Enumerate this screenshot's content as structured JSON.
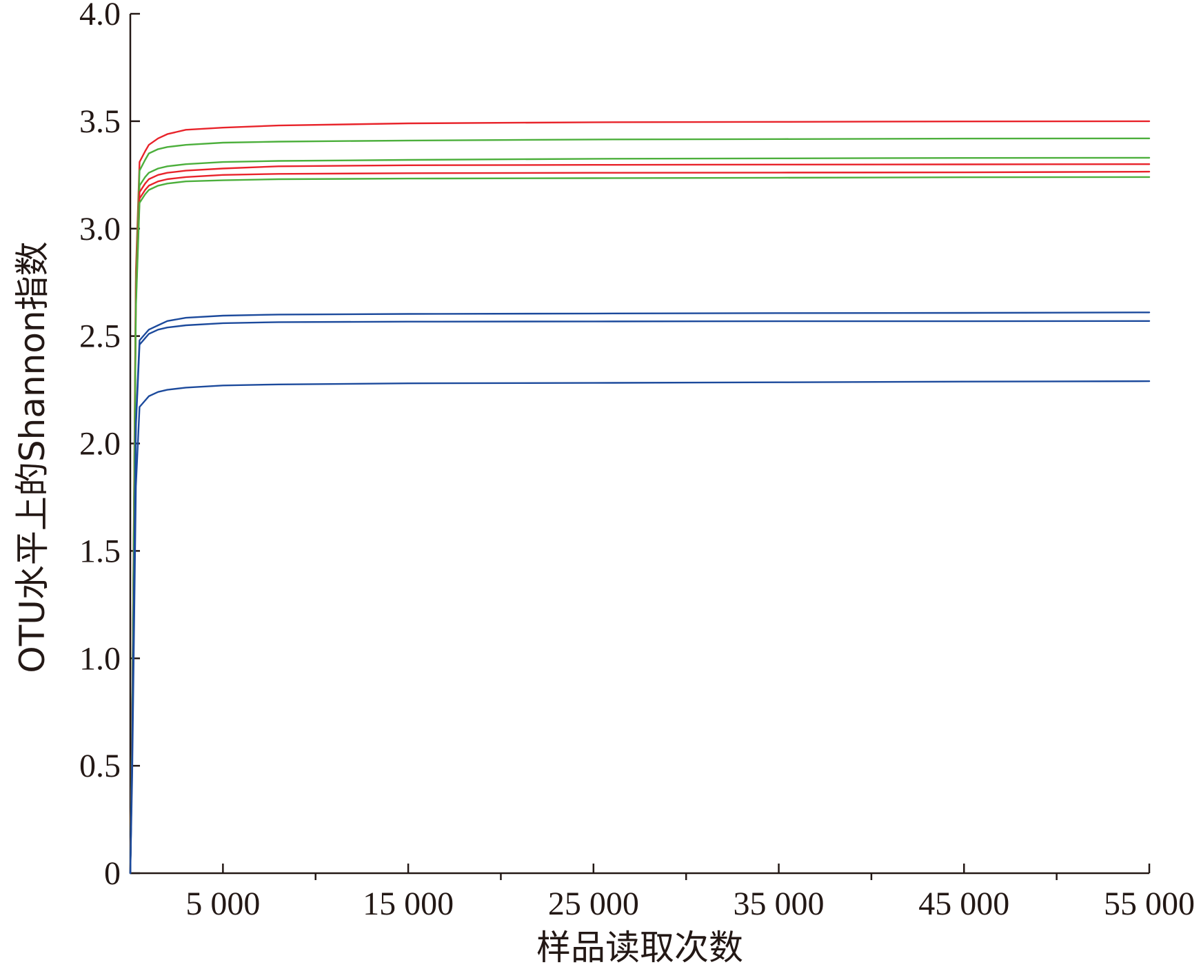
{
  "chart_data": {
    "type": "line",
    "title": "",
    "xlabel": "样品读取次数",
    "ylabel": "OTU水平上的Shannon指数",
    "xlim": [
      0,
      55000
    ],
    "ylim": [
      0,
      4.0
    ],
    "x_ticks": [
      5000,
      15000,
      25000,
      35000,
      45000,
      55000
    ],
    "x_minor_ticks": [
      10000,
      20000,
      30000,
      40000,
      50000
    ],
    "x_tick_labels": [
      "5 000",
      "15 000",
      "25 000",
      "35 000",
      "45 000",
      "55 000"
    ],
    "y_ticks": [
      0,
      0.5,
      1.0,
      1.5,
      2.0,
      2.5,
      3.0,
      3.5,
      4.0
    ],
    "y_tick_labels": [
      "0",
      "0.5",
      "1.0",
      "1.5",
      "2.0",
      "2.5",
      "3.0",
      "3.5",
      "4.0"
    ],
    "grid": false,
    "legend": "none",
    "x": [
      0,
      100,
      300,
      500,
      800,
      1000,
      1500,
      2000,
      3000,
      5000,
      8000,
      15000,
      25000,
      35000,
      45000,
      55000
    ],
    "series": [
      {
        "color": "#e8232a",
        "values": [
          0,
          0.7,
          2.8,
          3.31,
          3.36,
          3.39,
          3.42,
          3.44,
          3.46,
          3.47,
          3.48,
          3.49,
          3.495,
          3.497,
          3.499,
          3.5
        ]
      },
      {
        "color": "#4caf3c",
        "values": [
          0,
          0.68,
          2.75,
          3.27,
          3.32,
          3.35,
          3.37,
          3.38,
          3.39,
          3.4,
          3.405,
          3.41,
          3.415,
          3.417,
          3.419,
          3.42
        ]
      },
      {
        "color": "#4caf3c",
        "values": [
          0,
          0.65,
          2.7,
          3.2,
          3.24,
          3.26,
          3.28,
          3.29,
          3.3,
          3.31,
          3.315,
          3.32,
          3.325,
          3.327,
          3.329,
          3.33
        ]
      },
      {
        "color": "#e8232a",
        "values": [
          0,
          0.65,
          2.68,
          3.17,
          3.21,
          3.23,
          3.25,
          3.26,
          3.27,
          3.28,
          3.29,
          3.295,
          3.297,
          3.298,
          3.299,
          3.3
        ]
      },
      {
        "color": "#e8232a",
        "values": [
          0,
          0.64,
          2.65,
          3.14,
          3.18,
          3.2,
          3.22,
          3.23,
          3.24,
          3.25,
          3.255,
          3.258,
          3.26,
          3.261,
          3.262,
          3.265
        ]
      },
      {
        "color": "#4caf3c",
        "values": [
          0,
          0.63,
          2.63,
          3.12,
          3.16,
          3.18,
          3.2,
          3.21,
          3.22,
          3.225,
          3.23,
          3.233,
          3.235,
          3.237,
          3.239,
          3.24
        ]
      },
      {
        "color": "#1c4a9c",
        "values": [
          0,
          0.55,
          2.1,
          2.48,
          2.51,
          2.53,
          2.55,
          2.57,
          2.585,
          2.595,
          2.6,
          2.603,
          2.605,
          2.607,
          2.608,
          2.61
        ]
      },
      {
        "color": "#1c4a9c",
        "values": [
          0,
          0.54,
          2.08,
          2.46,
          2.49,
          2.51,
          2.53,
          2.54,
          2.55,
          2.56,
          2.565,
          2.567,
          2.568,
          2.569,
          2.569,
          2.57
        ]
      },
      {
        "color": "#1c4a9c",
        "values": [
          0,
          0.45,
          1.8,
          2.17,
          2.2,
          2.22,
          2.24,
          2.25,
          2.26,
          2.27,
          2.275,
          2.28,
          2.282,
          2.285,
          2.288,
          2.29
        ]
      }
    ]
  }
}
